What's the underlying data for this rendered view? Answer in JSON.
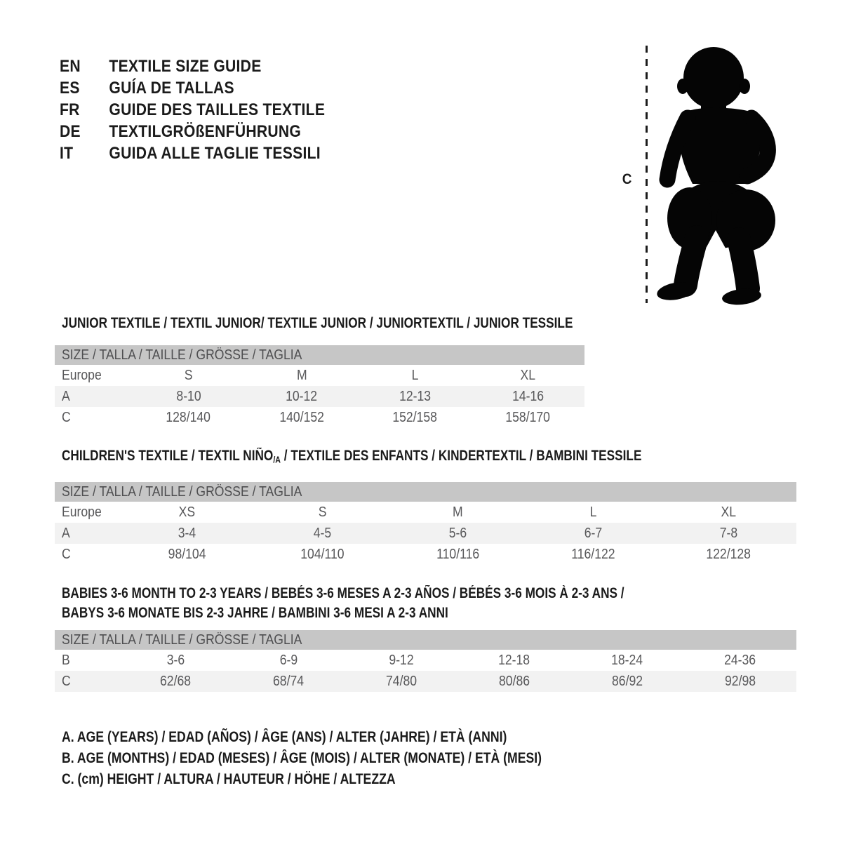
{
  "header": {
    "languages": [
      {
        "code": "EN",
        "title": "TEXTILE SIZE GUIDE"
      },
      {
        "code": "ES",
        "title": "GUÍA DE TALLAS"
      },
      {
        "code": "FR",
        "title": "GUIDE DES TAILLES TEXTILE"
      },
      {
        "code": "DE",
        "title": "TEXTILGRÖßENFÜHRUNG"
      },
      {
        "code": "IT",
        "title": "GUIDA ALLE TAGLIE TESSILI"
      }
    ]
  },
  "figure": {
    "measure_label": "C",
    "silhouette": "standing-toddler-silhouette"
  },
  "colors": {
    "title_text": "#1b1b1b",
    "table_text": "#58585a",
    "size_bar_bg": "#c6c6c6",
    "size_bar_text": "#4e4e50",
    "row_alt_bg": "#f2f2f2",
    "silhouette": "#050505"
  },
  "sections": [
    {
      "id": "junior",
      "title": "JUNIOR TEXTILE / TEXTIL JUNIOR/ TEXTILE JUNIOR / JUNIORTEXTIL / JUNIOR TESSILE",
      "size_header": "SIZE / TALLA / TAILLE / GRÖSSE / TAGLIA",
      "rows": [
        {
          "label": "Europe",
          "values": [
            "S",
            "M",
            "L",
            "XL"
          ]
        },
        {
          "label": "A",
          "values": [
            "8-10",
            "10-12",
            "12-13",
            "14-16"
          ],
          "shaded": true
        },
        {
          "label": "C",
          "values": [
            "128/140",
            "140/152",
            "152/158",
            "158/170"
          ]
        }
      ]
    },
    {
      "id": "children",
      "title_pre": "CHILDREN'S TEXTILE / TEXTIL NIÑO",
      "title_sub": "/A",
      "title_post": " / TEXTILE DES ENFANTS / KINDERTEXTIL / BAMBINI TESSILE",
      "size_header": "SIZE / TALLA / TAILLE / GRÖSSE / TAGLIA",
      "rows": [
        {
          "label": "Europe",
          "values": [
            "XS",
            "S",
            "M",
            "L",
            "XL"
          ]
        },
        {
          "label": "A",
          "values": [
            "3-4",
            "4-5",
            "5-6",
            "6-7",
            "7-8"
          ],
          "shaded": true
        },
        {
          "label": "C",
          "values": [
            "98/104",
            "104/110",
            "110/116",
            "116/122",
            "122/128"
          ]
        }
      ]
    },
    {
      "id": "babies",
      "title_line1": "BABIES 3-6 MONTH TO 2-3 YEARS / BEBÉS 3-6 MESES A 2-3 AÑOS / BÉBÉS 3-6 MOIS À 2-3 ANS /",
      "title_line2": "BABYS 3-6 MONATE BIS 2-3 JAHRE / BAMBINI 3-6 MESI A 2-3 ANNI",
      "size_header": "SIZE / TALLA / TAILLE / GRÖSSE / TAGLIA",
      "rows": [
        {
          "label": "B",
          "values": [
            "3-6",
            "6-9",
            "9-12",
            "12-18",
            "18-24",
            "24-36"
          ]
        },
        {
          "label": "C",
          "values": [
            "62/68",
            "68/74",
            "74/80",
            "80/86",
            "86/92",
            "92/98"
          ],
          "shaded": true
        }
      ]
    }
  ],
  "notes": [
    "A. AGE (YEARS) / EDAD (AÑOS) / ÂGE (ANS) / ALTER (JAHRE) / ETÀ (ANNI)",
    "B. AGE (MONTHS) / EDAD (MESES) / ÂGE (MOIS) / ALTER (MONATE) / ETÀ (MESI)",
    "C. (cm) HEIGHT / ALTURA / HAUTEUR / HÖHE / ALTEZZA"
  ]
}
